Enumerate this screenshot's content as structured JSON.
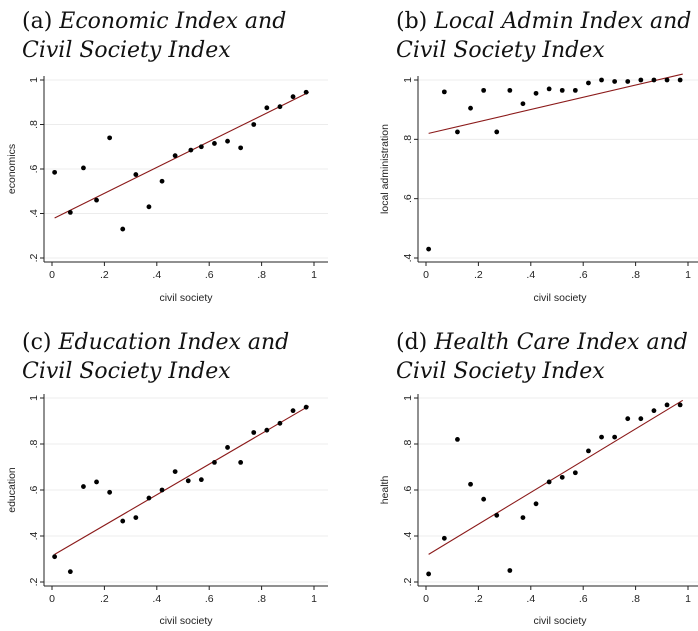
{
  "chart_data": [
    {
      "type": "scatter",
      "title_prefix": "(a)",
      "title_line1": "Economic Index and",
      "title_line2": "Civil Society Index",
      "xlabel": "civil society",
      "ylabel": "economics",
      "xlim": [
        0,
        1
      ],
      "ylim": [
        0.2,
        1
      ],
      "xticks": [
        "0",
        ".2",
        ".4",
        ".6",
        ".8",
        "1"
      ],
      "yticks": [
        ".2",
        ".4",
        ".6",
        ".8",
        "1"
      ],
      "grid": true,
      "points": [
        [
          0.01,
          0.585
        ],
        [
          0.07,
          0.405
        ],
        [
          0.12,
          0.605
        ],
        [
          0.17,
          0.46
        ],
        [
          0.22,
          0.74
        ],
        [
          0.27,
          0.33
        ],
        [
          0.32,
          0.575
        ],
        [
          0.37,
          0.43
        ],
        [
          0.42,
          0.545
        ],
        [
          0.47,
          0.66
        ],
        [
          0.53,
          0.685
        ],
        [
          0.57,
          0.7
        ],
        [
          0.62,
          0.715
        ],
        [
          0.67,
          0.725
        ],
        [
          0.72,
          0.695
        ],
        [
          0.77,
          0.8
        ],
        [
          0.82,
          0.875
        ],
        [
          0.87,
          0.88
        ],
        [
          0.92,
          0.925
        ],
        [
          0.97,
          0.945
        ]
      ],
      "fit_line": [
        [
          0.01,
          0.38
        ],
        [
          0.98,
          0.945
        ]
      ]
    },
    {
      "type": "scatter",
      "title_prefix": "(b)",
      "title_line1": "Local Admin Index and",
      "title_line2": "Civil Society Index",
      "xlabel": "civil society",
      "ylabel": "local administration",
      "xlim": [
        0,
        1
      ],
      "ylim": [
        0.4,
        1
      ],
      "xticks": [
        "0",
        ".2",
        ".4",
        ".6",
        ".8",
        "1"
      ],
      "yticks": [
        ".4",
        ".6",
        ".8",
        "1"
      ],
      "grid": true,
      "points": [
        [
          0.01,
          0.43
        ],
        [
          0.07,
          0.96
        ],
        [
          0.12,
          0.825
        ],
        [
          0.17,
          0.905
        ],
        [
          0.22,
          0.965
        ],
        [
          0.27,
          0.825
        ],
        [
          0.32,
          0.965
        ],
        [
          0.37,
          0.92
        ],
        [
          0.42,
          0.955
        ],
        [
          0.47,
          0.97
        ],
        [
          0.52,
          0.965
        ],
        [
          0.57,
          0.965
        ],
        [
          0.62,
          0.99
        ],
        [
          0.67,
          1.0
        ],
        [
          0.72,
          0.995
        ],
        [
          0.77,
          0.995
        ],
        [
          0.82,
          1.0
        ],
        [
          0.87,
          1.0
        ],
        [
          0.92,
          1.0
        ],
        [
          0.97,
          1.0
        ]
      ],
      "fit_line": [
        [
          0.01,
          0.82
        ],
        [
          0.98,
          1.02
        ]
      ]
    },
    {
      "type": "scatter",
      "title_prefix": "(c)",
      "title_line1": "Education Index and",
      "title_line2": "Civil Society Index",
      "xlabel": "civil society",
      "ylabel": "education",
      "xlim": [
        0,
        1
      ],
      "ylim": [
        0.2,
        1
      ],
      "xticks": [
        "0",
        ".2",
        ".4",
        ".6",
        ".8",
        "1"
      ],
      "yticks": [
        ".2",
        ".4",
        ".6",
        ".8",
        "1"
      ],
      "grid": true,
      "points": [
        [
          0.01,
          0.31
        ],
        [
          0.07,
          0.245
        ],
        [
          0.12,
          0.615
        ],
        [
          0.17,
          0.635
        ],
        [
          0.22,
          0.59
        ],
        [
          0.27,
          0.465
        ],
        [
          0.32,
          0.48
        ],
        [
          0.37,
          0.565
        ],
        [
          0.42,
          0.6
        ],
        [
          0.47,
          0.68
        ],
        [
          0.52,
          0.64
        ],
        [
          0.57,
          0.645
        ],
        [
          0.62,
          0.72
        ],
        [
          0.67,
          0.785
        ],
        [
          0.72,
          0.72
        ],
        [
          0.77,
          0.85
        ],
        [
          0.82,
          0.86
        ],
        [
          0.87,
          0.89
        ],
        [
          0.92,
          0.945
        ],
        [
          0.97,
          0.96
        ]
      ],
      "fit_line": [
        [
          0.01,
          0.32
        ],
        [
          0.98,
          0.965
        ]
      ]
    },
    {
      "type": "scatter",
      "title_prefix": "(d)",
      "title_line1": "Health Care Index and",
      "title_line2": "Civil Society Index",
      "xlabel": "civil society",
      "ylabel": "health",
      "xlim": [
        0,
        1
      ],
      "ylim": [
        0.2,
        1
      ],
      "xticks": [
        "0",
        ".2",
        ".4",
        ".6",
        ".8",
        "1"
      ],
      "yticks": [
        ".2",
        ".4",
        ".6",
        ".8",
        "1"
      ],
      "grid": true,
      "points": [
        [
          0.01,
          0.235
        ],
        [
          0.07,
          0.39
        ],
        [
          0.12,
          0.82
        ],
        [
          0.17,
          0.625
        ],
        [
          0.22,
          0.56
        ],
        [
          0.27,
          0.49
        ],
        [
          0.32,
          0.25
        ],
        [
          0.37,
          0.48
        ],
        [
          0.42,
          0.54
        ],
        [
          0.47,
          0.635
        ],
        [
          0.52,
          0.655
        ],
        [
          0.57,
          0.675
        ],
        [
          0.62,
          0.77
        ],
        [
          0.67,
          0.83
        ],
        [
          0.72,
          0.83
        ],
        [
          0.77,
          0.91
        ],
        [
          0.82,
          0.91
        ],
        [
          0.87,
          0.945
        ],
        [
          0.92,
          0.97
        ],
        [
          0.97,
          0.97
        ]
      ],
      "fit_line": [
        [
          0.01,
          0.32
        ],
        [
          0.98,
          0.99
        ]
      ]
    }
  ]
}
